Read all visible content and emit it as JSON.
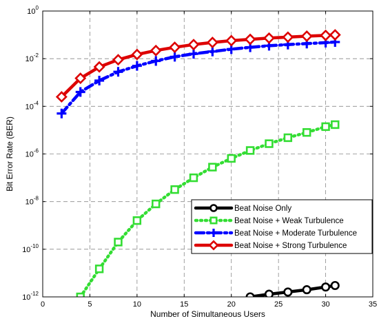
{
  "chart_data": {
    "type": "line",
    "title": "",
    "xlabel": "Number of Simultaneous Users",
    "ylabel": "Bit Error Rate (BER)",
    "xlim": [
      0,
      35
    ],
    "ylim": [
      1e-12,
      1
    ],
    "yscale": "log",
    "grid": true,
    "legend_position": "bottom-right",
    "x_ticks": [
      "0",
      "5",
      "10",
      "15",
      "20",
      "25",
      "30",
      "35"
    ],
    "y_ticks": [
      {
        "base": "10",
        "exp": "0"
      },
      {
        "base": "10",
        "exp": "-2"
      },
      {
        "base": "10",
        "exp": "-4"
      },
      {
        "base": "10",
        "exp": "-6"
      },
      {
        "base": "10",
        "exp": "-8"
      },
      {
        "base": "10",
        "exp": "-10"
      },
      {
        "base": "10",
        "exp": "-12"
      }
    ],
    "series": [
      {
        "name": "Beat Noise Only",
        "color": "#000000",
        "marker": "circle",
        "style": "solid",
        "x": [
          22,
          24,
          26,
          28,
          30,
          31
        ],
        "y": [
          1e-12,
          1.3e-12,
          1.6e-12,
          2e-12,
          2.6e-12,
          3e-12
        ]
      },
      {
        "name": "Beat Noise + Weak Turbulence",
        "color": "#33dd33",
        "marker": "square",
        "style": "dotted",
        "x": [
          4,
          6,
          8,
          10,
          12,
          14,
          16,
          18,
          20,
          22,
          24,
          26,
          28,
          30,
          31
        ],
        "y": [
          1e-12,
          1.5e-11,
          2e-10,
          1.6e-09,
          8e-09,
          3.2e-08,
          1e-07,
          2.8e-07,
          6.5e-07,
          1.4e-06,
          2.7e-06,
          4.8e-06,
          8e-06,
          1.4e-05,
          1.7e-05
        ]
      },
      {
        "name": "Beat Noise + Moderate Turbulence",
        "color": "#0000ff",
        "marker": "plus",
        "style": "dashdot",
        "x": [
          2,
          4,
          6,
          8,
          10,
          12,
          14,
          16,
          18,
          20,
          22,
          24,
          26,
          28,
          30,
          31
        ],
        "y": [
          5e-05,
          0.0004,
          0.0012,
          0.0028,
          0.005,
          0.008,
          0.012,
          0.016,
          0.02,
          0.025,
          0.03,
          0.035,
          0.039,
          0.043,
          0.047,
          0.05
        ]
      },
      {
        "name": "Beat Noise + Strong Turbulence",
        "color": "#dd0000",
        "marker": "diamond",
        "style": "solid",
        "x": [
          2,
          4,
          6,
          8,
          10,
          12,
          14,
          16,
          18,
          20,
          22,
          24,
          26,
          28,
          30,
          31
        ],
        "y": [
          0.00025,
          0.0015,
          0.0045,
          0.009,
          0.015,
          0.022,
          0.03,
          0.039,
          0.048,
          0.057,
          0.065,
          0.073,
          0.08,
          0.088,
          0.095,
          0.1
        ]
      }
    ]
  }
}
